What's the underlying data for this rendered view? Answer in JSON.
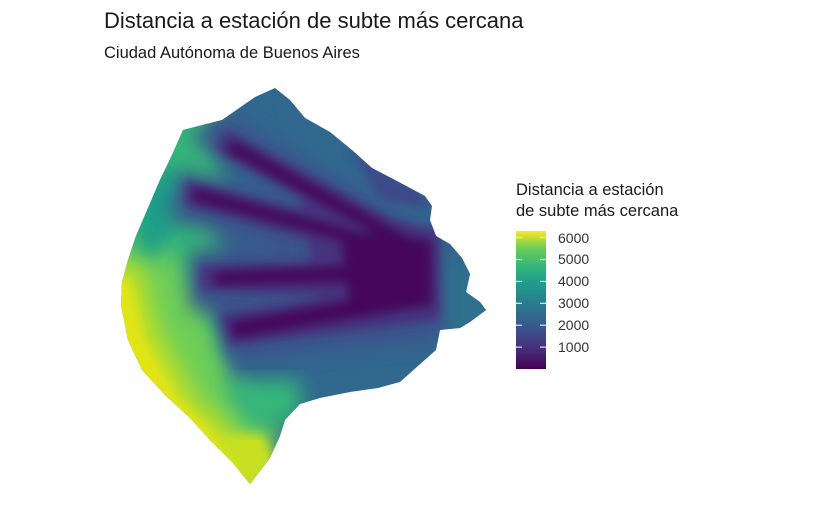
{
  "title": "Distancia a estación de subte más cercana",
  "subtitle": "Ciudad Autónoma de Buenos Aires",
  "legend": {
    "title_line1": "Distancia a estación",
    "title_line2": "de subte más cercana",
    "min": 0,
    "max": 6300,
    "ticks": [
      "6000",
      "5000",
      "4000",
      "3000",
      "2000",
      "1000"
    ],
    "tick_values": [
      6000,
      5000,
      4000,
      3000,
      2000,
      1000
    ]
  },
  "colors": {
    "palette": "viridis",
    "low": "#440154",
    "mid_low": "#3b528b",
    "mid": "#21918c",
    "mid_high": "#5ec962",
    "high": "#fde725"
  }
}
